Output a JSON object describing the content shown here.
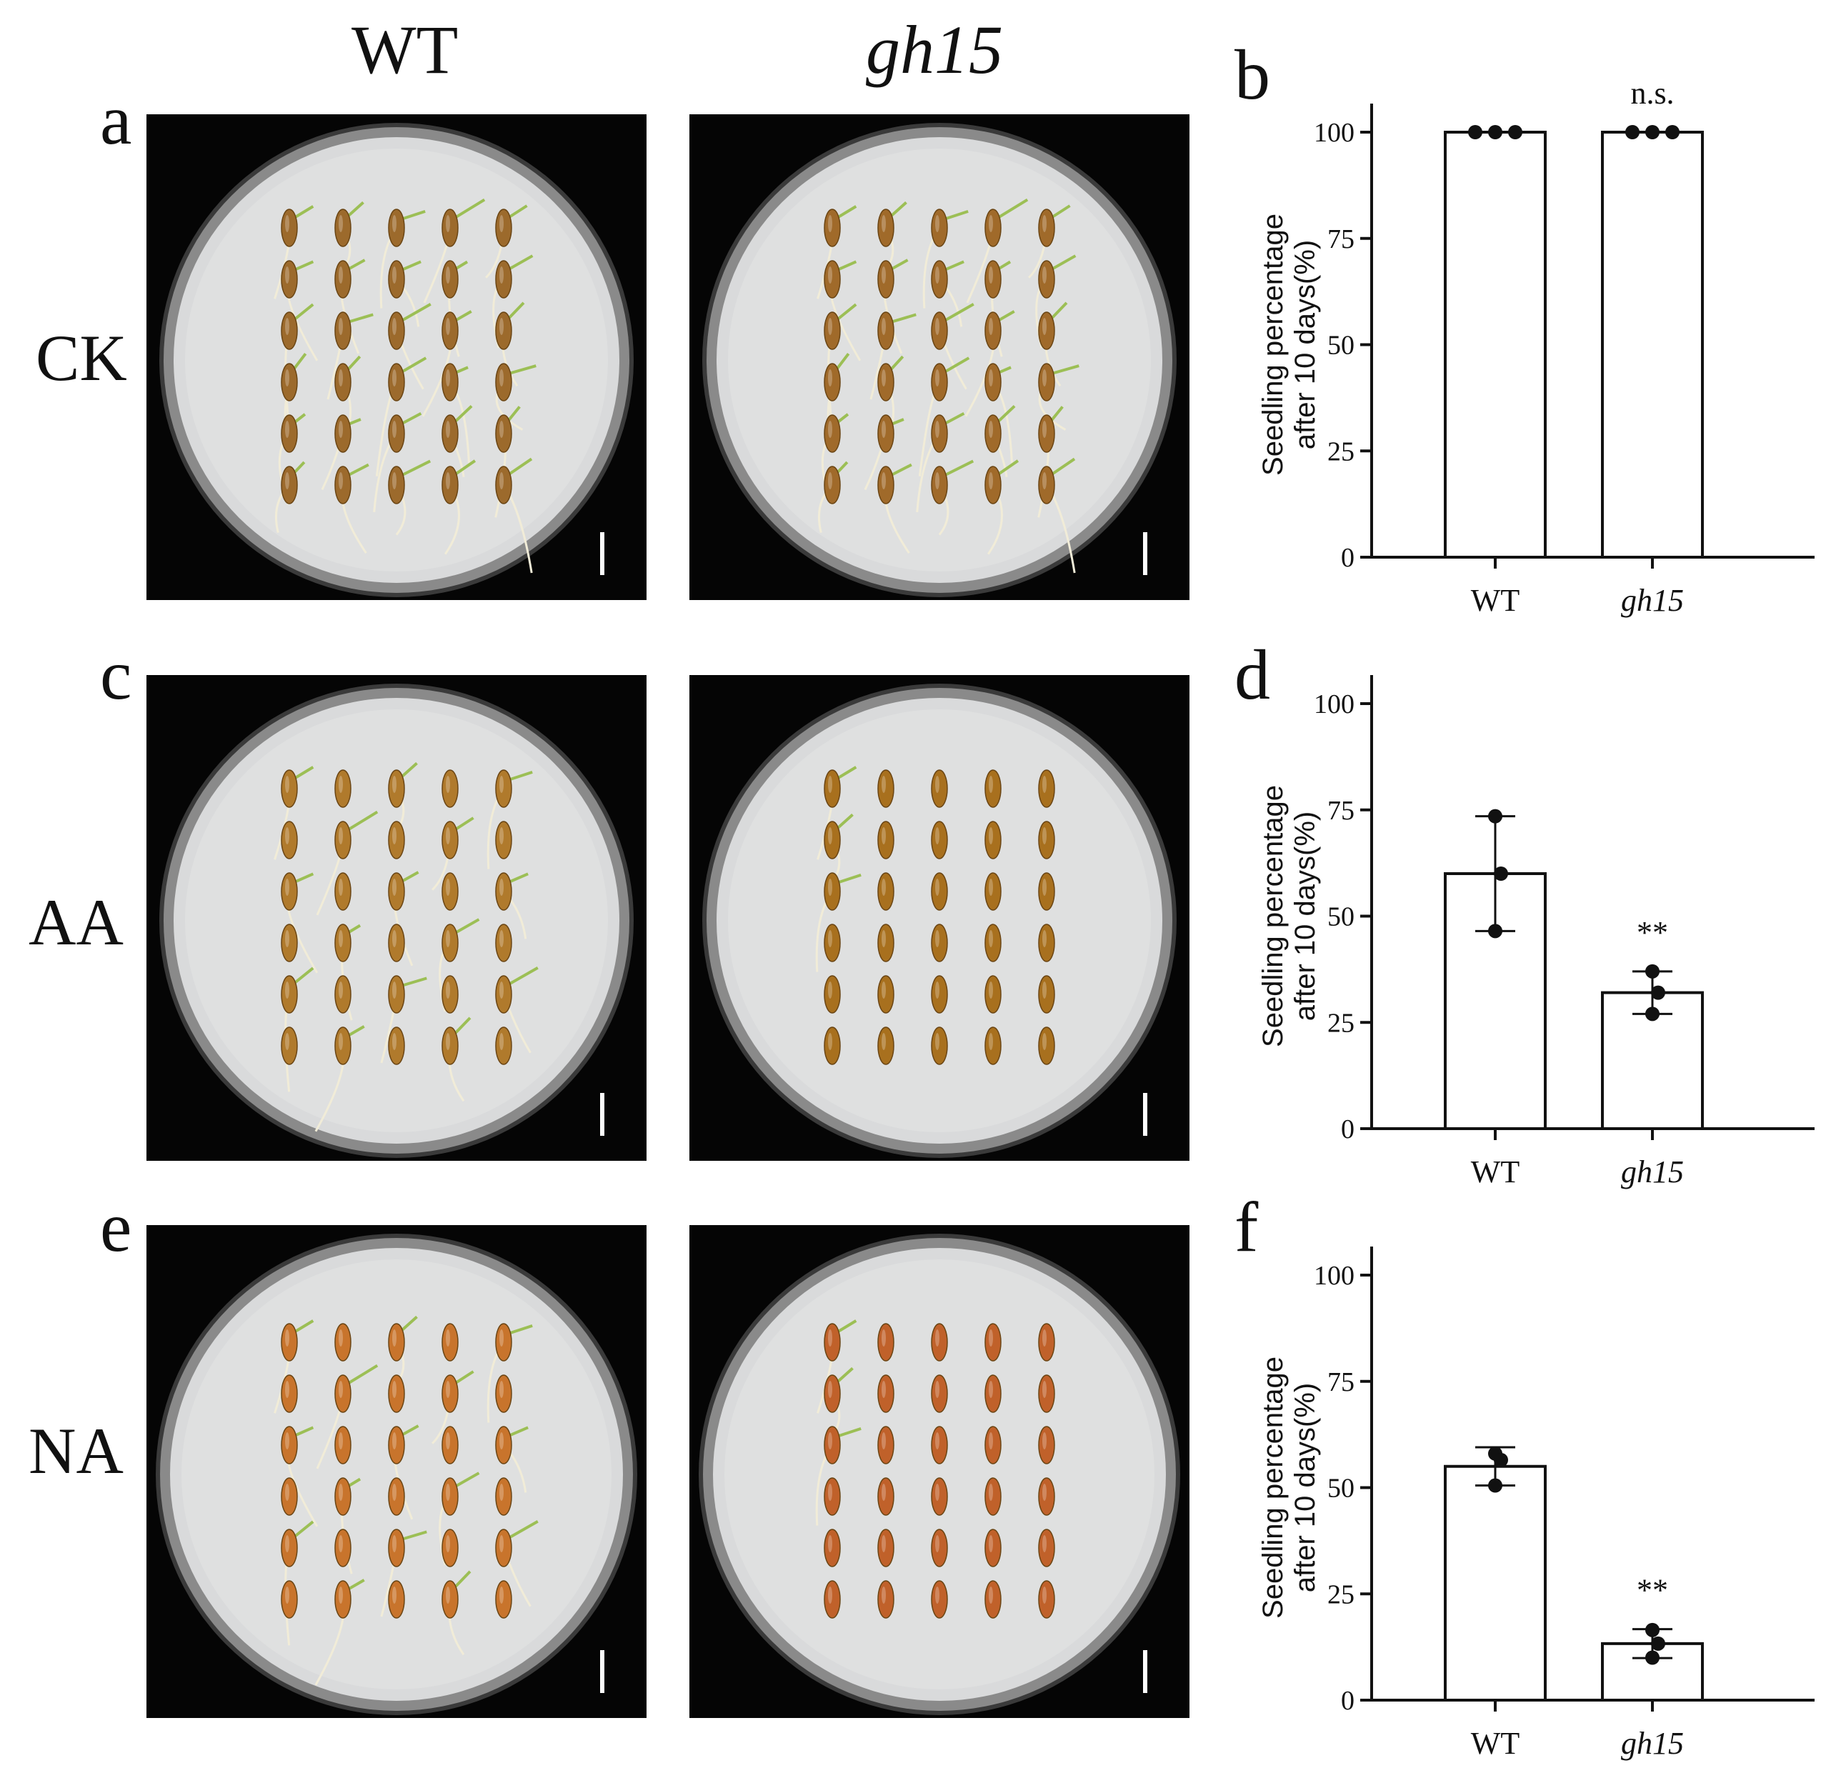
{
  "column_headers": {
    "wt": "WT",
    "mutant": "gh15"
  },
  "panel_letters": {
    "a": "a",
    "b": "b",
    "c": "c",
    "d": "d",
    "e": "e",
    "f": "f"
  },
  "row_labels": {
    "ck": "CK",
    "aa": "AA",
    "na": "NA"
  },
  "photos": [
    {
      "row": "CK",
      "genotype": "WT",
      "seed_color": "#9c6a2c",
      "germination": "high"
    },
    {
      "row": "CK",
      "genotype": "gh15",
      "seed_color": "#a06a2a",
      "germination": "high"
    },
    {
      "row": "AA",
      "genotype": "WT",
      "seed_color": "#b07a2c",
      "germination": "medium"
    },
    {
      "row": "AA",
      "genotype": "gh15",
      "seed_color": "#a8701e",
      "germination": "low"
    },
    {
      "row": "NA",
      "genotype": "WT",
      "seed_color": "#c8742c",
      "germination": "medium"
    },
    {
      "row": "NA",
      "genotype": "gh15",
      "seed_color": "#c0612a",
      "germination": "low"
    }
  ],
  "chart_data": [
    {
      "type": "bar",
      "panel": "b",
      "ylabel_line1": "Seedling percentage",
      "ylabel_line2": "after 10 days(%)",
      "categories": [
        "WT",
        "gh15"
      ],
      "values": [
        100,
        100
      ],
      "errors": [
        0,
        0
      ],
      "points": [
        [
          100,
          100,
          100
        ],
        [
          100,
          100,
          100
        ]
      ],
      "significance": [
        "",
        "n.s."
      ],
      "ylim": [
        0,
        100
      ],
      "yticks": [
        0,
        25,
        50,
        75,
        100
      ]
    },
    {
      "type": "bar",
      "panel": "d",
      "ylabel_line1": "Seedling percentage",
      "ylabel_line2": "after 10 days(%)",
      "categories": [
        "WT",
        "gh15"
      ],
      "values": [
        60,
        32
      ],
      "errors": [
        13.5,
        5
      ],
      "points": [
        [
          73.5,
          60,
          46.5
        ],
        [
          37,
          32,
          27
        ]
      ],
      "significance": [
        "",
        "**"
      ],
      "ylim": [
        0,
        100
      ],
      "yticks": [
        0,
        25,
        50,
        75,
        100
      ]
    },
    {
      "type": "bar",
      "panel": "f",
      "ylabel_line1": "Seedling percentage",
      "ylabel_line2": "after 10 days(%)",
      "categories": [
        "WT",
        "gh15"
      ],
      "values": [
        55,
        13.3
      ],
      "errors": [
        4.5,
        3.4
      ],
      "points": [
        [
          58,
          56.5,
          50.5
        ],
        [
          16.5,
          13.3,
          10
        ]
      ],
      "significance": [
        "",
        "**"
      ],
      "ylim": [
        0,
        100
      ],
      "yticks": [
        0,
        25,
        50,
        75,
        100
      ]
    }
  ]
}
